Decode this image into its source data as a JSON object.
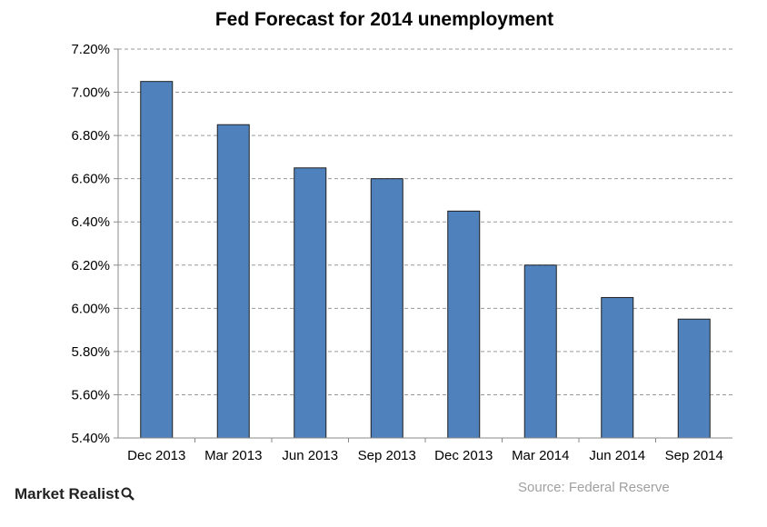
{
  "chart_data": {
    "type": "bar",
    "title": "Fed Forecast for 2014 unemployment",
    "categories": [
      "Dec 2013",
      "Mar 2013",
      "Jun 2013",
      "Sep 2013",
      "Dec 2013",
      "Mar 2014",
      "Jun 2014",
      "Sep 2014"
    ],
    "values": [
      7.05,
      6.85,
      6.65,
      6.6,
      6.45,
      6.2,
      6.05,
      5.95
    ],
    "ylim": [
      5.4,
      7.2
    ],
    "yticks": [
      "5.40%",
      "5.60%",
      "5.80%",
      "6.00%",
      "6.20%",
      "6.40%",
      "6.60%",
      "6.80%",
      "7.00%",
      "7.20%"
    ],
    "xlabel": "",
    "ylabel": "",
    "grid": true,
    "bar_color": "#4f81bd"
  },
  "footer": {
    "source": "Source: Federal Reserve",
    "brand": "Market Realist"
  },
  "icons": {
    "brand": "magnifier-icon"
  }
}
